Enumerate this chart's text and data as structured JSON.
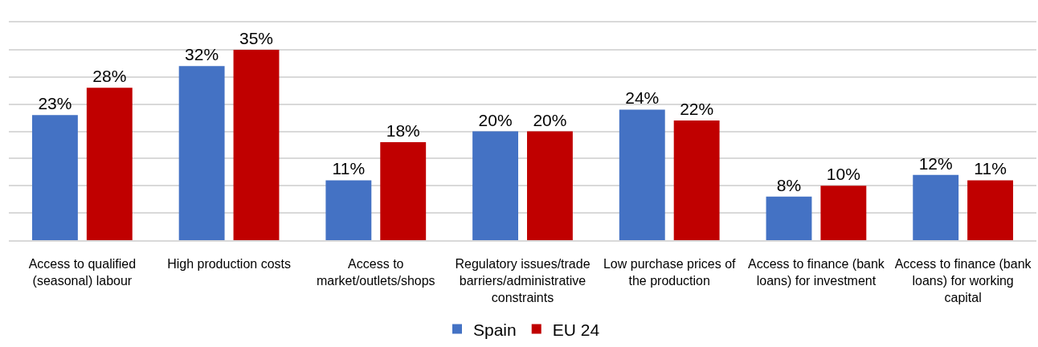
{
  "chart_data": {
    "type": "bar",
    "categories": [
      "Access to qualified (seasonal) labour",
      "High production costs",
      "Access to market/outlets/shops",
      "Regulatory issues/trade barriers/administrative constraints",
      "Low purchase prices of the production",
      "Access to finance (bank loans) for investment",
      "Access to finance (bank loans) for working capital"
    ],
    "series": [
      {
        "name": "Spain",
        "color": "#4472c4",
        "values": [
          23,
          32,
          11,
          20,
          24,
          8,
          12
        ],
        "value_labels": [
          "23%",
          "32%",
          "11%",
          "20%",
          "24%",
          "8%",
          "12%"
        ]
      },
      {
        "name": "EU 24",
        "color": "#c00000",
        "values": [
          28,
          35,
          18,
          20,
          22,
          10,
          11
        ],
        "value_labels": [
          "28%",
          "35%",
          "18%",
          "20%",
          "22%",
          "10%",
          "11%"
        ]
      }
    ],
    "ylim": [
      0,
      40
    ],
    "yticks": [
      {
        "value": 0,
        "label": null
      },
      {
        "value": 5,
        "label": null
      },
      {
        "value": 10,
        "label": null
      },
      {
        "value": 15,
        "label": null
      },
      {
        "value": 20,
        "label": null
      },
      {
        "value": 25,
        "label": null
      },
      {
        "value": 30,
        "label": null
      },
      {
        "value": 35,
        "label": null
      },
      {
        "value": 40,
        "label": null
      }
    ],
    "grid": "y",
    "legend": "bottom",
    "tick_labels": "x"
  }
}
